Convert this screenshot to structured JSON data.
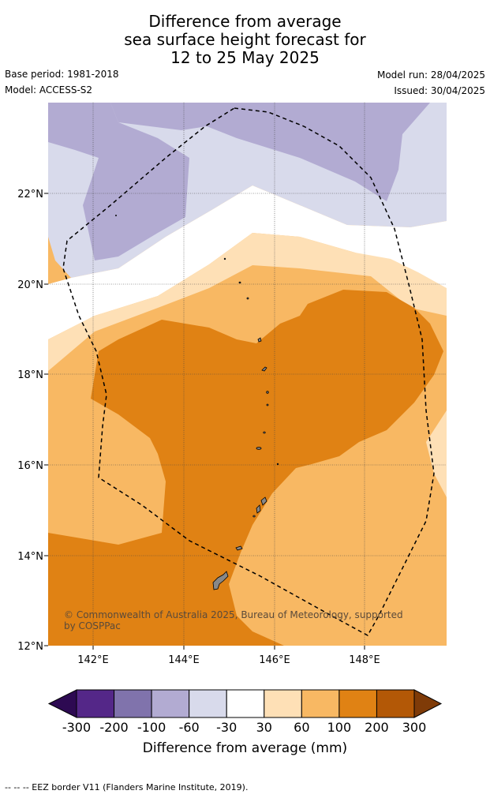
{
  "title": {
    "line1": "Difference from average",
    "line2": "sea surface height forecast for",
    "line3": "12 to 25 May 2025"
  },
  "meta": {
    "base_period": "Base period: 1981-2018",
    "model": "Model: ACCESS-S2",
    "model_run": "Model run: 28/04/2025",
    "issued": "Issued: 30/04/2025"
  },
  "map": {
    "lat_labels": [
      "22°N",
      "20°N",
      "18°N",
      "16°N",
      "14°N",
      "12°N"
    ],
    "lon_labels": [
      "142°E",
      "144°E",
      "146°E",
      "148°E"
    ],
    "copyright": "© Commonwealth of Australia 2025, Bureau of Meteorology, supported by COSPPac"
  },
  "colorbar": {
    "ticks": [
      "-300",
      "-200",
      "-100",
      "-60",
      "-30",
      "30",
      "60",
      "100",
      "200",
      "300"
    ],
    "colors": [
      "#2d0a52",
      "#542788",
      "#8073ac",
      "#b2abd2",
      "#d8daeb",
      "#ffffff",
      "#fee0b6",
      "#f8b863",
      "#e08214",
      "#b35806",
      "#7f3b08"
    ],
    "title": "Difference from average (mm)"
  },
  "footer": "--  --  -- EEZ border V11 (Flanders Marine Institute, 2019)."
}
